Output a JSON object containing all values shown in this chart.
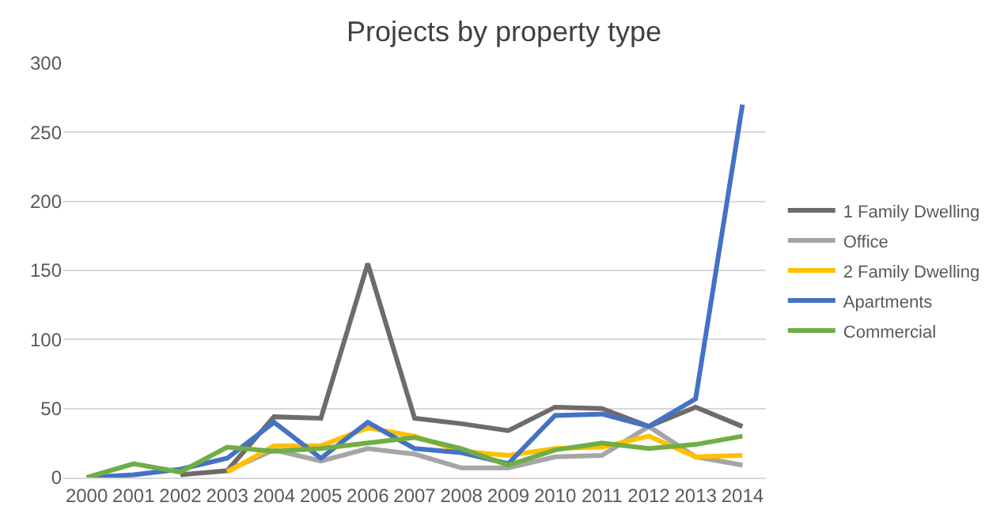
{
  "chart_data": {
    "type": "line",
    "title": "Projects by property type",
    "categories": [
      "2000",
      "2001",
      "2002",
      "2003",
      "2004",
      "2005",
      "2006",
      "2007",
      "2008",
      "2009",
      "2010",
      "2011",
      "2012",
      "2013",
      "2014"
    ],
    "series": [
      {
        "name": "1 Family Dwelling",
        "color": "#6f6b6b",
        "values": [
          null,
          null,
          2,
          5,
          44,
          43,
          155,
          43,
          39,
          34,
          51,
          50,
          37,
          51,
          37
        ]
      },
      {
        "name": "Office",
        "color": "#a5a5a5",
        "values": [
          null,
          null,
          null,
          5,
          20,
          12,
          21,
          17,
          7,
          7,
          15,
          16,
          37,
          15,
          9
        ]
      },
      {
        "name": "2 Family Dwelling",
        "color": "#ffc000",
        "values": [
          null,
          null,
          null,
          4,
          23,
          23,
          36,
          30,
          19,
          16,
          21,
          22,
          30,
          15,
          16
        ]
      },
      {
        "name": "Apartments",
        "color": "#4472c4",
        "values": [
          0,
          2,
          6,
          14,
          40,
          14,
          40,
          21,
          18,
          10,
          45,
          46,
          37,
          57,
          270
        ]
      },
      {
        "name": "Commercial",
        "color": "#70ad47",
        "values": [
          0,
          10,
          4,
          22,
          19,
          21,
          25,
          29,
          21,
          9,
          20,
          25,
          21,
          24,
          30
        ]
      }
    ],
    "ylim": [
      0,
      300
    ],
    "yticks": [
      0,
      50,
      100,
      150,
      200,
      250,
      300
    ],
    "grid": "y",
    "legend": "right",
    "marker": "none",
    "line_style": "solid"
  }
}
